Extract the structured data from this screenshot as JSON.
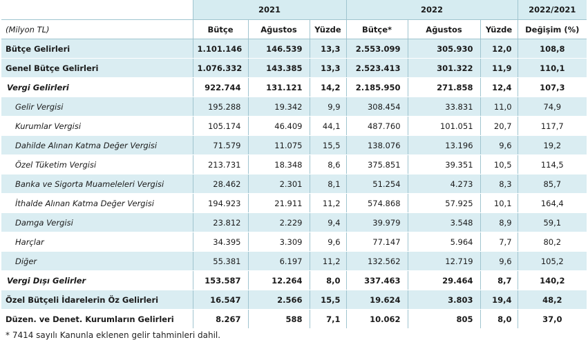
{
  "header": {
    "year_2021": "2021",
    "year_2022": "2022",
    "change_period": "2022/2021",
    "unit": "(Milyon TL)",
    "col_butce": "Bütçe",
    "col_agustos": "Ağustos",
    "col_yuzde": "Yüzde",
    "col_butce_star": "Bütçe*",
    "col_agustos2": "Ağustos",
    "col_yuzde2": "Yüzde",
    "col_degisim": "Değişim (%)"
  },
  "rows": [
    {
      "label": "Bütçe Gelirleri",
      "b21": "1.101.146",
      "a21": "146.539",
      "y21": "13,3",
      "b22": "2.553.099",
      "a22": "305.930",
      "y22": "12,0",
      "d": "108,8"
    },
    {
      "label": "Genel Bütçe Gelirleri",
      "b21": "1.076.332",
      "a21": "143.385",
      "y21": "13,3",
      "b22": "2.523.413",
      "a22": "301.322",
      "y22": "11,9",
      "d": "110,1"
    },
    {
      "label": "Vergi Gelirleri",
      "b21": "922.744",
      "a21": "131.121",
      "y21": "14,2",
      "b22": "2.185.950",
      "a22": "271.858",
      "y22": "12,4",
      "d": "107,3"
    },
    {
      "label": "Gelir Vergisi",
      "b21": "195.288",
      "a21": "19.342",
      "y21": "9,9",
      "b22": "308.454",
      "a22": "33.831",
      "y22": "11,0",
      "d": "74,9"
    },
    {
      "label": "Kurumlar Vergisi",
      "b21": "105.174",
      "a21": "46.409",
      "y21": "44,1",
      "b22": "487.760",
      "a22": "101.051",
      "y22": "20,7",
      "d": "117,7"
    },
    {
      "label": "Dahilde Alınan Katma Değer Vergisi",
      "b21": "71.579",
      "a21": "11.075",
      "y21": "15,5",
      "b22": "138.076",
      "a22": "13.196",
      "y22": "9,6",
      "d": "19,2"
    },
    {
      "label": "Özel Tüketim Vergisi",
      "b21": "213.731",
      "a21": "18.348",
      "y21": "8,6",
      "b22": "375.851",
      "a22": "39.351",
      "y22": "10,5",
      "d": "114,5"
    },
    {
      "label": "Banka ve Sigorta Muameleleri Vergisi",
      "b21": "28.462",
      "a21": "2.301",
      "y21": "8,1",
      "b22": "51.254",
      "a22": "4.273",
      "y22": "8,3",
      "d": "85,7"
    },
    {
      "label": "İthalde Alınan Katma Değer Vergisi",
      "b21": "194.923",
      "a21": "21.911",
      "y21": "11,2",
      "b22": "574.868",
      "a22": "57.925",
      "y22": "10,1",
      "d": "164,4"
    },
    {
      "label": "Damga Vergisi",
      "b21": "23.812",
      "a21": "2.229",
      "y21": "9,4",
      "b22": "39.979",
      "a22": "3.548",
      "y22": "8,9",
      "d": "59,1"
    },
    {
      "label": "Harçlar",
      "b21": "34.395",
      "a21": "3.309",
      "y21": "9,6",
      "b22": "77.147",
      "a22": "5.964",
      "y22": "7,7",
      "d": "80,2"
    },
    {
      "label": "Diğer",
      "b21": "55.381",
      "a21": "6.197",
      "y21": "11,2",
      "b22": "132.562",
      "a22": "12.719",
      "y22": "9,6",
      "d": "105,2"
    },
    {
      "label": "Vergi Dışı Gelirler",
      "b21": "153.587",
      "a21": "12.264",
      "y21": "8,0",
      "b22": "337.463",
      "a22": "29.464",
      "y22": "8,7",
      "d": "140,2"
    },
    {
      "label": "Özel Bütçeli İdarelerin Öz Gelirleri",
      "b21": "16.547",
      "a21": "2.566",
      "y21": "15,5",
      "b22": "19.624",
      "a22": "3.803",
      "y22": "19,4",
      "d": "48,2"
    },
    {
      "label": "Düzen. ve Denet. Kurumların Gelirleri",
      "b21": "8.267",
      "a21": "588",
      "y21": "7,1",
      "b22": "10.062",
      "a22": "805",
      "y22": "8,0",
      "d": "37,0"
    }
  ],
  "footnote": "* 7414 sayılı Kanunla eklenen gelir tahminleri dahil."
}
